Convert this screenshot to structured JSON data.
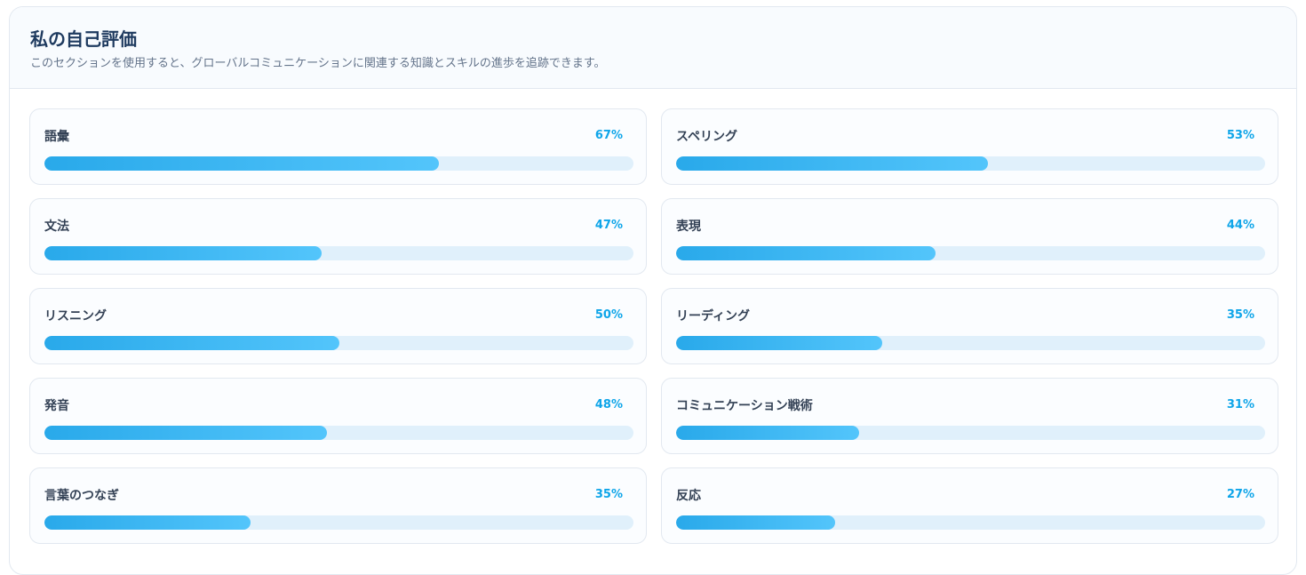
{
  "header": {
    "title": "私の自己評価",
    "subtitle": "このセクションを使用すると、グローバルコミュニケーションに関連する知識とスキルの進歩を追跡できます。"
  },
  "skills": [
    {
      "name": "語彙",
      "value": 67,
      "value_label": "67%"
    },
    {
      "name": "スペリング",
      "value": 53,
      "value_label": "53%"
    },
    {
      "name": "文法",
      "value": 47,
      "value_label": "47%"
    },
    {
      "name": "表現",
      "value": 44,
      "value_label": "44%"
    },
    {
      "name": "リスニング",
      "value": 50,
      "value_label": "50%"
    },
    {
      "name": "リーディング",
      "value": 35,
      "value_label": "35%"
    },
    {
      "name": "発音",
      "value": 48,
      "value_label": "48%"
    },
    {
      "name": "コミュニケーション戦術",
      "value": 31,
      "value_label": "31%"
    },
    {
      "name": "言葉のつなぎ",
      "value": 35,
      "value_label": "35%"
    },
    {
      "name": "反応",
      "value": 27,
      "value_label": "27%"
    }
  ]
}
